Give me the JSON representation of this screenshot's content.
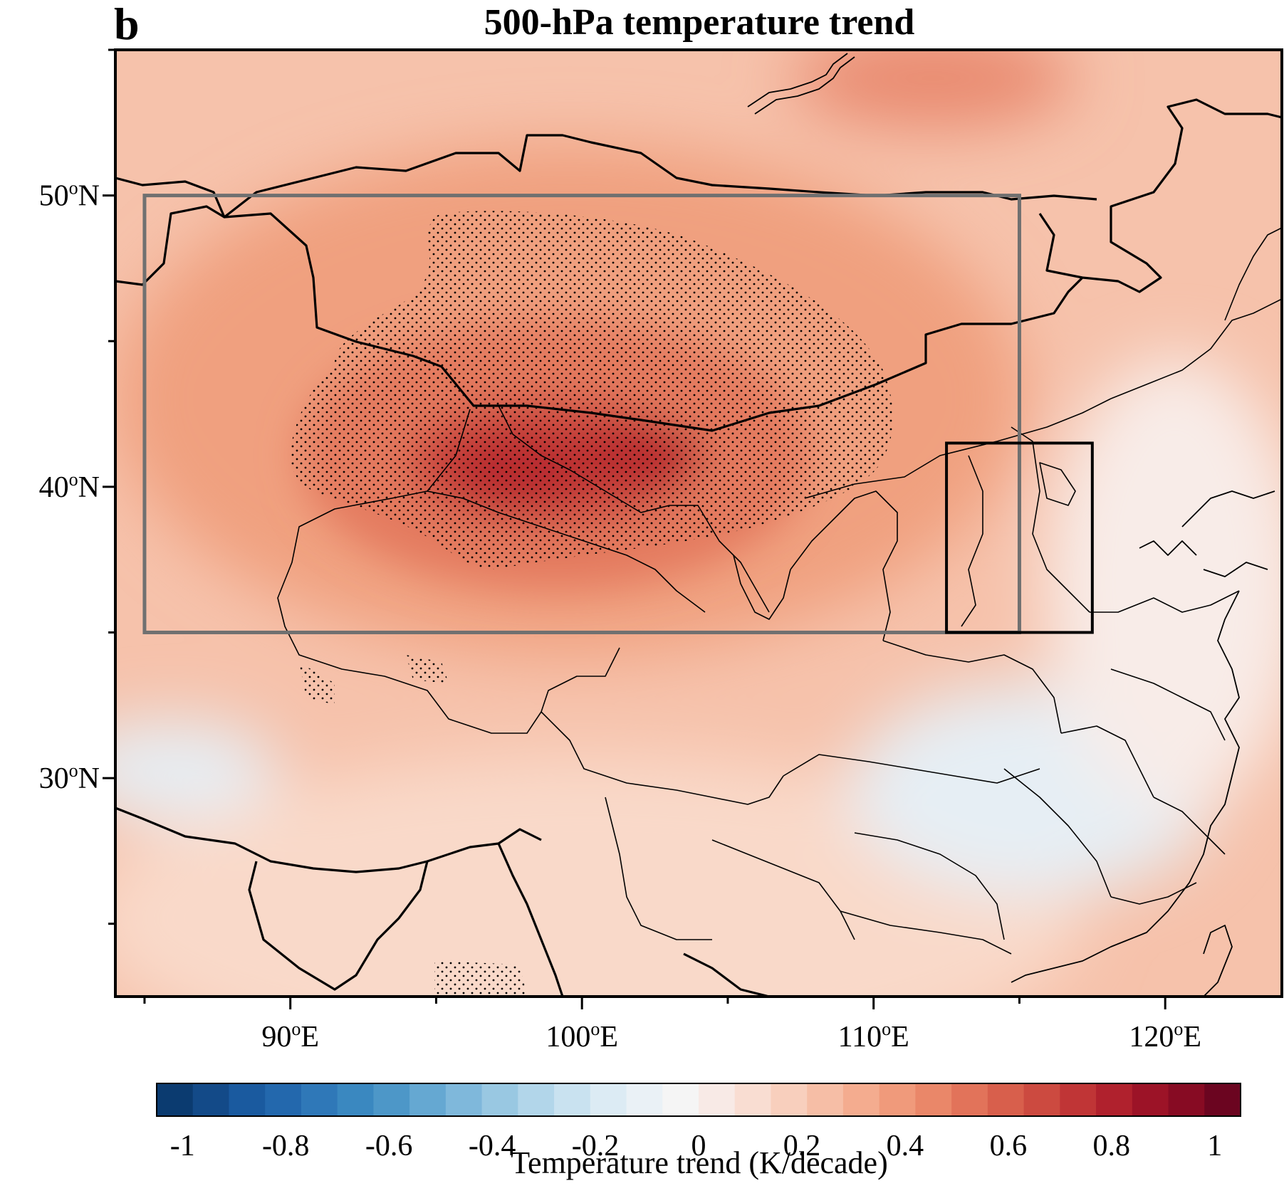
{
  "panel_label": "b",
  "title": "500-hPa temperature trend",
  "lon_ticks": [
    {
      "value": 90,
      "label": "90",
      "suffix": "E"
    },
    {
      "value": 100,
      "label": "100",
      "suffix": "E"
    },
    {
      "value": 110,
      "label": "110",
      "suffix": "E"
    },
    {
      "value": 120,
      "label": "120",
      "suffix": "E"
    }
  ],
  "lat_ticks": [
    {
      "value": 50,
      "label": "50",
      "suffix": "N"
    },
    {
      "value": 40,
      "label": "40",
      "suffix": "N"
    },
    {
      "value": 30,
      "label": "30",
      "suffix": "N"
    }
  ],
  "degree_symbol": "o",
  "colorbar": {
    "title": "Temperature trend (K/decade)",
    "range": [
      -1.05,
      1.05
    ],
    "step": 0.05,
    "tick_labels": [
      {
        "value": -1,
        "label": "-1"
      },
      {
        "value": -0.8,
        "label": "-0.8"
      },
      {
        "value": -0.6,
        "label": "-0.6"
      },
      {
        "value": -0.4,
        "label": "-0.4"
      },
      {
        "value": -0.2,
        "label": "-0.2"
      },
      {
        "value": 0,
        "label": "0"
      },
      {
        "value": 0.2,
        "label": "0.2"
      },
      {
        "value": 0.4,
        "label": "0.4"
      },
      {
        "value": 0.6,
        "label": "0.6"
      },
      {
        "value": 0.8,
        "label": "0.8"
      },
      {
        "value": 1,
        "label": "1"
      }
    ],
    "colors": [
      "#0b3b70",
      "#134a88",
      "#1a5a9f",
      "#2368ad",
      "#2f78b8",
      "#3a88c0",
      "#4d97c8",
      "#65a8d2",
      "#7fb8db",
      "#99c8e2",
      "#b2d6ea",
      "#c9e2f0",
      "#dcebf4",
      "#eaf1f6",
      "#f5f5f5",
      "#f8eae6",
      "#f9ddd2",
      "#f8cfbd",
      "#f6bea6",
      "#f4ac8f",
      "#f09a7b",
      "#ea8769",
      "#e2735a",
      "#d85f4c",
      "#cc4a40",
      "#c03536",
      "#b0212d",
      "#9c1327",
      "#870b23",
      "#6b0520"
    ]
  },
  "map": {
    "lon_range": [
      84,
      124
    ],
    "lat_range": [
      22.5,
      55
    ],
    "field_colors": {
      "background": "#f6c2ab",
      "warm_moderate": "#f0a07f",
      "warm_strong": "#e47a5f",
      "warm_peak": "#cc4a40",
      "warm_core": "#b72b2f",
      "warm_north": "#e98a6f",
      "cool": "#e6eef4",
      "neutral": "#f8ece8",
      "light": "#f9d9c9"
    },
    "boxes": [
      {
        "name": "gray-box",
        "lon": [
          85,
          115
        ],
        "lat": [
          35,
          50
        ],
        "color": "#707070"
      },
      {
        "name": "black-box",
        "lon": [
          112.5,
          117.5
        ],
        "lat": [
          35,
          41.5
        ],
        "color": "#000000"
      }
    ]
  }
}
